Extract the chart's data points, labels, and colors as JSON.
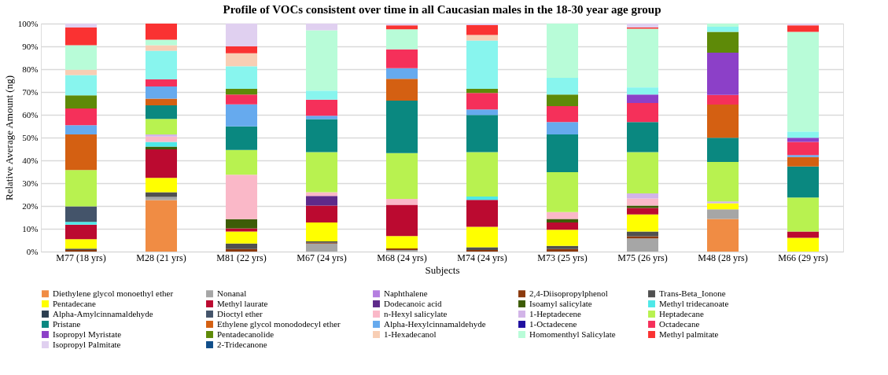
{
  "chart_data": {
    "type": "bar",
    "stacked": true,
    "title": "Profile of VOCs consistent over time in all Caucasian males in the 18-30 year age group",
    "xlabel": "Subjects",
    "ylabel": "Relative Average Amount (ng)",
    "categories": [
      "M77 (18 yrs)",
      "M28 (21 yrs)",
      "M81 (22 yrs)",
      "M67 (24 yrs)",
      "M68 (24 yrs)",
      "M74 (24 yrs)",
      "M73 (25 yrs)",
      "M75 (26 yrs)",
      "M48 (28 yrs)",
      "M66 (29 yrs)"
    ],
    "ylim": [
      0,
      100
    ],
    "yticks": [
      {
        "value": 0,
        "label": "0%"
      },
      {
        "value": 10,
        "label": "10%"
      },
      {
        "value": 20,
        "label": "20%"
      },
      {
        "value": 30,
        "label": "30%"
      },
      {
        "value": 40,
        "label": "40%"
      },
      {
        "value": 50,
        "label": "50%"
      },
      {
        "value": 60,
        "label": "60%"
      },
      {
        "value": 70,
        "label": "70%"
      },
      {
        "value": 80,
        "label": "80%"
      },
      {
        "value": 90,
        "label": "90%"
      },
      {
        "value": 100,
        "label": "100%"
      }
    ],
    "grid": "y",
    "legend": "bottom",
    "series": [
      {
        "name": "Diethylene glycol monoethyl ether",
        "color": "#f08c44",
        "values": [
          null,
          22.6,
          null,
          null,
          null,
          null,
          null,
          null,
          14.3,
          null
        ]
      },
      {
        "name": "Nonanal",
        "color": "#a6a6a6",
        "values": [
          null,
          1.4,
          null,
          3.5,
          0.7,
          null,
          null,
          5.8,
          4.2,
          null
        ]
      },
      {
        "name": "Naphthalene",
        "color": "#b57fe0",
        "values": [
          null,
          null,
          null,
          null,
          null,
          null,
          null,
          null,
          null,
          null
        ]
      },
      {
        "name": "2,4-Diisopropylphenol",
        "color": "#8b3a0e",
        "values": [
          0.7,
          null,
          1.1,
          0.4,
          0.7,
          0.7,
          1.1,
          0.9,
          null,
          null
        ]
      },
      {
        "name": "Trans-Beta_Ionone",
        "color": "#505050",
        "values": [
          0.6,
          2.0,
          2.4,
          0.6,
          null,
          1.2,
          1.4,
          2.1,
          null,
          null
        ]
      },
      {
        "name": "Pentadecane",
        "color": "#ffff00",
        "values": [
          4.1,
          6.3,
          5.3,
          8.3,
          5.4,
          9.0,
          7.1,
          7.5,
          2.7,
          6.0
        ]
      },
      {
        "name": "Methyl laurate",
        "color": "#bb0a30",
        "values": [
          6.4,
          12.5,
          1.4,
          7.4,
          13.7,
          11.8,
          3.2,
          2.8,
          null,
          2.8
        ]
      },
      {
        "name": "Dodecanoic acid",
        "color": "#5e2a8a",
        "values": [
          null,
          null,
          null,
          4.2,
          null,
          null,
          null,
          null,
          null,
          null
        ]
      },
      {
        "name": "Isoamyl salicylate",
        "color": "#3d5c07",
        "values": [
          null,
          1.2,
          4.0,
          null,
          null,
          null,
          1.5,
          1.1,
          null,
          null
        ]
      },
      {
        "name": "Methyl tridecanoate",
        "color": "#4ee8e8",
        "values": [
          1.2,
          2.1,
          null,
          null,
          null,
          1.4,
          null,
          null,
          null,
          null
        ]
      },
      {
        "name": "Alpha-Amylcinnamaldehyde",
        "color": "#2c3e50",
        "values": [
          null,
          null,
          null,
          null,
          null,
          null,
          null,
          null,
          null,
          null
        ]
      },
      {
        "name": "Dioctyl ether",
        "color": "#44546a",
        "values": [
          6.8,
          null,
          null,
          null,
          null,
          null,
          null,
          null,
          null,
          null
        ]
      },
      {
        "name": "n-Hexyl salicylate",
        "color": "#fab8c8",
        "values": [
          null,
          2.3,
          19.5,
          1.6,
          2.6,
          null,
          3.0,
          3.1,
          null,
          null
        ]
      },
      {
        "name": "1-Heptadecene",
        "color": "#d2b4e8",
        "values": [
          null,
          1.0,
          null,
          null,
          null,
          null,
          null,
          2.2,
          0.8,
          null
        ]
      },
      {
        "name": "Heptadecane",
        "color": "#b8f250",
        "values": [
          16.0,
          6.8,
          10.9,
          17.6,
          20.1,
          19.5,
          17.5,
          18.1,
          17.3,
          14.9
        ]
      },
      {
        "name": "Pristane",
        "color": "#0a8880",
        "values": [
          null,
          5.9,
          10.3,
          14.5,
          23.0,
          16.3,
          16.6,
          13.2,
          10.6,
          13.6
        ]
      },
      {
        "name": "Ethylene glycol monododecyl ether",
        "color": "#d46012",
        "values": [
          15.6,
          3.0,
          null,
          null,
          9.6,
          null,
          null,
          null,
          14.6,
          4.2
        ]
      },
      {
        "name": "Alpha-Hexylcinnamaldehyde",
        "color": "#66aaee",
        "values": [
          4.0,
          5.3,
          9.7,
          1.5,
          4.6,
          2.4,
          5.4,
          null,
          null,
          0.8
        ]
      },
      {
        "name": "1-Octadecene",
        "color": "#2010a0",
        "values": [
          null,
          null,
          null,
          null,
          null,
          null,
          null,
          null,
          null,
          null
        ]
      },
      {
        "name": "Octadecane",
        "color": "#f5305a",
        "values": [
          7.4,
          3.1,
          4.3,
          7.0,
          8.3,
          7.3,
          7.0,
          8.4,
          4.2,
          5.8
        ]
      },
      {
        "name": "Isopropyl Myristate",
        "color": "#8c40c8",
        "values": [
          null,
          null,
          null,
          null,
          null,
          null,
          null,
          3.7,
          18.5,
          1.8
        ]
      },
      {
        "name": "Pentadecanolide",
        "color": "#5e8a08",
        "values": [
          5.7,
          null,
          2.5,
          null,
          null,
          1.8,
          5.1,
          null,
          9.2,
          null
        ]
      },
      {
        "color": "#88f5ee",
        "values": [
          8.8,
          12.5,
          9.8,
          3.9,
          null,
          21.1,
          7.3,
          3.1,
          2.2,
          2.7
        ]
      },
      {
        "name": "1-Hexadecanol",
        "color": "#f8ceb4",
        "values": [
          2.4,
          2.5,
          5.8,
          null,
          null,
          2.5,
          null,
          null,
          null,
          null
        ]
      },
      {
        "name": "Homomenthyl Salicylate",
        "color": "#b8fcd8",
        "values": [
          10.8,
          2.4,
          null,
          26.6,
          8.8,
          null,
          23.8,
          25.8,
          1.4,
          43.8
        ]
      },
      {
        "name": "Methyl palmitate",
        "color": "#fa3232",
        "values": [
          7.8,
          7.1,
          3.0,
          null,
          1.7,
          4.3,
          null,
          0.5,
          null,
          2.8
        ]
      },
      {
        "name": "Isopropyl Palmitate",
        "color": "#e0d0f0",
        "values": [
          1.7,
          null,
          10.0,
          2.9,
          0.8,
          0.7,
          null,
          1.7,
          null,
          0.8
        ]
      },
      {
        "name": "2-Tridecanone",
        "color": "#104e8a",
        "values": [
          null,
          null,
          null,
          null,
          null,
          null,
          null,
          null,
          null,
          null
        ]
      }
    ]
  }
}
